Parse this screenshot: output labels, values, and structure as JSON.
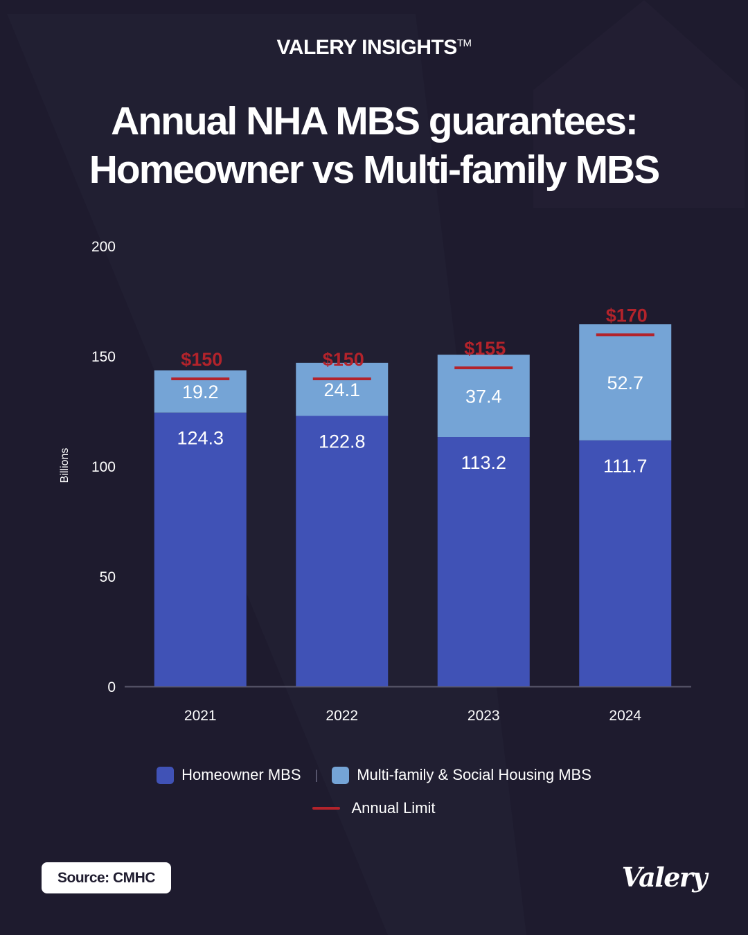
{
  "header": {
    "brand": "VALERY INSIGHTS",
    "trademark": "TM"
  },
  "title_line1": "Annual NHA MBS guarantees:",
  "title_line2": "Homeowner vs Multi-family MBS",
  "colors": {
    "background": "#1e1b2e",
    "homeowner": "#4052b6",
    "multifamily": "#75a4d6",
    "limit": "#b3232b",
    "axis_text": "#ffffff"
  },
  "chart_data": {
    "type": "bar",
    "stacked": true,
    "categories": [
      "2021",
      "2022",
      "2023",
      "2024"
    ],
    "series": [
      {
        "name": "Homeowner MBS",
        "values": [
          124.3,
          122.8,
          113.2,
          111.7
        ],
        "labels": [
          "124.3",
          "122.8",
          "113.2",
          "111.7"
        ]
      },
      {
        "name": "Multi-family & Social Housing MBS",
        "values": [
          19.2,
          24.1,
          37.4,
          52.7
        ],
        "labels": [
          "19.2",
          "24.1",
          "37.4",
          "52.7"
        ]
      }
    ],
    "limit": {
      "name": "Annual Limit",
      "values": [
        150,
        150,
        155,
        170
      ],
      "labels": [
        "$150",
        "$150",
        "$155",
        "$170"
      ]
    },
    "ylabel": "Billions",
    "ylim": [
      0,
      200
    ],
    "yticks": [
      0,
      50,
      100,
      150,
      200
    ],
    "grid": false,
    "legend_position": "bottom"
  },
  "legend": {
    "homeowner": "Homeowner MBS",
    "multifamily": "Multi-family & Social Housing MBS",
    "limit": "Annual Limit"
  },
  "footer": {
    "source": "Source: CMHC",
    "logo": "Valery"
  }
}
